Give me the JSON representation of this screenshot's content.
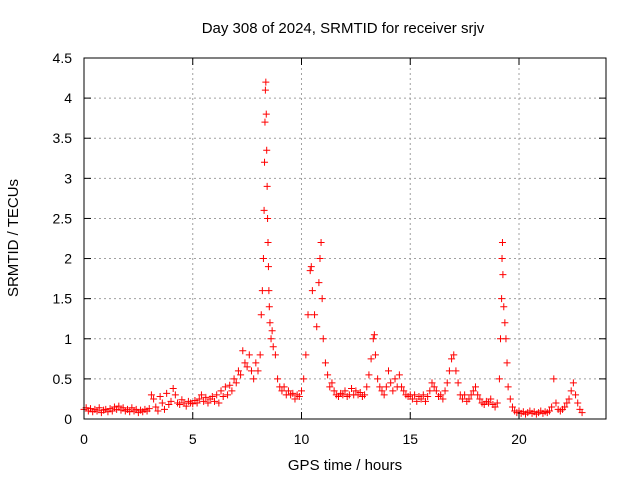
{
  "chart_data": {
    "type": "scatter",
    "title": "Day 308 of 2024, SRMTID for receiver srjv",
    "xlabel": "GPS time / hours",
    "ylabel": "SRMTID / TECUs",
    "xlim": [
      0,
      24
    ],
    "ylim": [
      0,
      4.5
    ],
    "xticks": [
      0,
      5,
      10,
      15,
      20
    ],
    "yticks": [
      0,
      0.5,
      1,
      1.5,
      2,
      2.5,
      3,
      3.5,
      4,
      4.5
    ],
    "xtick_labels": [
      "0",
      "5",
      "10",
      "15",
      "20"
    ],
    "ytick_labels": [
      "0",
      "0.5",
      "1",
      "1.5",
      "2",
      "2.5",
      "3",
      "3.5",
      "4",
      "4.5"
    ],
    "grid": true,
    "marker": "+",
    "color": "#ff0000",
    "series": [
      {
        "name": "srjv",
        "points": [
          [
            0.0,
            0.12
          ],
          [
            0.1,
            0.14
          ],
          [
            0.2,
            0.1
          ],
          [
            0.3,
            0.13
          ],
          [
            0.4,
            0.09
          ],
          [
            0.5,
            0.12
          ],
          [
            0.6,
            0.1
          ],
          [
            0.7,
            0.14
          ],
          [
            0.8,
            0.08
          ],
          [
            0.9,
            0.11
          ],
          [
            1.0,
            0.12
          ],
          [
            1.1,
            0.09
          ],
          [
            1.2,
            0.13
          ],
          [
            1.3,
            0.1
          ],
          [
            1.4,
            0.15
          ],
          [
            1.5,
            0.12
          ],
          [
            1.6,
            0.16
          ],
          [
            1.7,
            0.11
          ],
          [
            1.8,
            0.14
          ],
          [
            1.9,
            0.1
          ],
          [
            2.0,
            0.12
          ],
          [
            2.1,
            0.09
          ],
          [
            2.2,
            0.14
          ],
          [
            2.3,
            0.1
          ],
          [
            2.4,
            0.12
          ],
          [
            2.5,
            0.08
          ],
          [
            2.6,
            0.11
          ],
          [
            2.7,
            0.09
          ],
          [
            2.8,
            0.12
          ],
          [
            2.9,
            0.1
          ],
          [
            3.0,
            0.13
          ],
          [
            3.1,
            0.3
          ],
          [
            3.2,
            0.25
          ],
          [
            3.3,
            0.15
          ],
          [
            3.4,
            0.1
          ],
          [
            3.5,
            0.28
          ],
          [
            3.6,
            0.2
          ],
          [
            3.7,
            0.12
          ],
          [
            3.8,
            0.32
          ],
          [
            3.9,
            0.18
          ],
          [
            4.0,
            0.22
          ],
          [
            4.1,
            0.38
          ],
          [
            4.2,
            0.3
          ],
          [
            4.3,
            0.2
          ],
          [
            4.4,
            0.18
          ],
          [
            4.5,
            0.24
          ],
          [
            4.6,
            0.2
          ],
          [
            4.7,
            0.16
          ],
          [
            4.8,
            0.22
          ],
          [
            4.9,
            0.2
          ],
          [
            5.0,
            0.19
          ],
          [
            5.1,
            0.23
          ],
          [
            5.2,
            0.2
          ],
          [
            5.3,
            0.25
          ],
          [
            5.4,
            0.3
          ],
          [
            5.5,
            0.22
          ],
          [
            5.6,
            0.27
          ],
          [
            5.7,
            0.2
          ],
          [
            5.8,
            0.25
          ],
          [
            5.9,
            0.28
          ],
          [
            6.0,
            0.22
          ],
          [
            6.1,
            0.3
          ],
          [
            6.2,
            0.2
          ],
          [
            6.3,
            0.35
          ],
          [
            6.4,
            0.28
          ],
          [
            6.5,
            0.4
          ],
          [
            6.6,
            0.3
          ],
          [
            6.7,
            0.42
          ],
          [
            6.8,
            0.35
          ],
          [
            6.9,
            0.5
          ],
          [
            7.0,
            0.45
          ],
          [
            7.1,
            0.6
          ],
          [
            7.2,
            0.55
          ],
          [
            7.3,
            0.85
          ],
          [
            7.4,
            0.7
          ],
          [
            7.5,
            0.65
          ],
          [
            7.6,
            0.8
          ],
          [
            7.7,
            0.6
          ],
          [
            7.8,
            0.5
          ],
          [
            7.9,
            0.7
          ],
          [
            8.0,
            0.6
          ],
          [
            8.1,
            0.8
          ],
          [
            8.15,
            1.3
          ],
          [
            8.2,
            1.6
          ],
          [
            8.25,
            2.0
          ],
          [
            8.28,
            2.6
          ],
          [
            8.3,
            3.2
          ],
          [
            8.32,
            3.7
          ],
          [
            8.34,
            4.1
          ],
          [
            8.36,
            4.2
          ],
          [
            8.38,
            3.8
          ],
          [
            8.4,
            3.35
          ],
          [
            8.42,
            2.9
          ],
          [
            8.44,
            2.5
          ],
          [
            8.46,
            2.2
          ],
          [
            8.48,
            1.9
          ],
          [
            8.5,
            1.6
          ],
          [
            8.52,
            1.4
          ],
          [
            8.55,
            1.2
          ],
          [
            8.6,
            1.0
          ],
          [
            8.65,
            1.1
          ],
          [
            8.7,
            0.9
          ],
          [
            8.8,
            0.8
          ],
          [
            8.9,
            0.5
          ],
          [
            9.0,
            0.4
          ],
          [
            9.1,
            0.35
          ],
          [
            9.2,
            0.4
          ],
          [
            9.3,
            0.3
          ],
          [
            9.4,
            0.35
          ],
          [
            9.5,
            0.3
          ],
          [
            9.6,
            0.32
          ],
          [
            9.7,
            0.25
          ],
          [
            9.8,
            0.3
          ],
          [
            9.9,
            0.28
          ],
          [
            10.0,
            0.35
          ],
          [
            10.1,
            0.5
          ],
          [
            10.2,
            0.8
          ],
          [
            10.3,
            1.3
          ],
          [
            10.4,
            1.85
          ],
          [
            10.45,
            1.9
          ],
          [
            10.5,
            1.6
          ],
          [
            10.6,
            1.3
          ],
          [
            10.7,
            1.15
          ],
          [
            10.8,
            1.7
          ],
          [
            10.85,
            2.0
          ],
          [
            10.9,
            2.2
          ],
          [
            10.95,
            1.5
          ],
          [
            11.0,
            1.0
          ],
          [
            11.1,
            0.7
          ],
          [
            11.2,
            0.55
          ],
          [
            11.3,
            0.4
          ],
          [
            11.4,
            0.45
          ],
          [
            11.5,
            0.35
          ],
          [
            11.6,
            0.3
          ],
          [
            11.7,
            0.28
          ],
          [
            11.8,
            0.32
          ],
          [
            11.9,
            0.3
          ],
          [
            12.0,
            0.35
          ],
          [
            12.1,
            0.28
          ],
          [
            12.2,
            0.3
          ],
          [
            12.3,
            0.38
          ],
          [
            12.4,
            0.3
          ],
          [
            12.5,
            0.35
          ],
          [
            12.6,
            0.3
          ],
          [
            12.7,
            0.33
          ],
          [
            12.8,
            0.28
          ],
          [
            12.9,
            0.3
          ],
          [
            13.0,
            0.4
          ],
          [
            13.1,
            0.55
          ],
          [
            13.2,
            0.75
          ],
          [
            13.3,
            1.0
          ],
          [
            13.35,
            1.05
          ],
          [
            13.4,
            0.8
          ],
          [
            13.5,
            0.5
          ],
          [
            13.6,
            0.4
          ],
          [
            13.7,
            0.35
          ],
          [
            13.8,
            0.3
          ],
          [
            13.9,
            0.4
          ],
          [
            14.0,
            0.6
          ],
          [
            14.1,
            0.45
          ],
          [
            14.2,
            0.35
          ],
          [
            14.3,
            0.5
          ],
          [
            14.4,
            0.4
          ],
          [
            14.5,
            0.55
          ],
          [
            14.6,
            0.4
          ],
          [
            14.7,
            0.35
          ],
          [
            14.8,
            0.3
          ],
          [
            14.9,
            0.28
          ],
          [
            15.0,
            0.3
          ],
          [
            15.1,
            0.25
          ],
          [
            15.2,
            0.3
          ],
          [
            15.3,
            0.22
          ],
          [
            15.4,
            0.28
          ],
          [
            15.5,
            0.25
          ],
          [
            15.6,
            0.3
          ],
          [
            15.7,
            0.22
          ],
          [
            15.8,
            0.28
          ],
          [
            15.9,
            0.35
          ],
          [
            16.0,
            0.45
          ],
          [
            16.1,
            0.4
          ],
          [
            16.2,
            0.35
          ],
          [
            16.3,
            0.28
          ],
          [
            16.4,
            0.3
          ],
          [
            16.5,
            0.25
          ],
          [
            16.6,
            0.35
          ],
          [
            16.7,
            0.45
          ],
          [
            16.8,
            0.6
          ],
          [
            16.9,
            0.75
          ],
          [
            17.0,
            0.8
          ],
          [
            17.1,
            0.6
          ],
          [
            17.2,
            0.45
          ],
          [
            17.3,
            0.3
          ],
          [
            17.4,
            0.25
          ],
          [
            17.5,
            0.3
          ],
          [
            17.6,
            0.22
          ],
          [
            17.7,
            0.25
          ],
          [
            17.8,
            0.3
          ],
          [
            17.9,
            0.35
          ],
          [
            18.0,
            0.4
          ],
          [
            18.1,
            0.3
          ],
          [
            18.2,
            0.25
          ],
          [
            18.3,
            0.2
          ],
          [
            18.4,
            0.18
          ],
          [
            18.5,
            0.22
          ],
          [
            18.6,
            0.2
          ],
          [
            18.7,
            0.25
          ],
          [
            18.8,
            0.18
          ],
          [
            18.9,
            0.15
          ],
          [
            19.0,
            0.2
          ],
          [
            19.1,
            0.5
          ],
          [
            19.15,
            1.0
          ],
          [
            19.2,
            1.5
          ],
          [
            19.22,
            2.0
          ],
          [
            19.24,
            2.2
          ],
          [
            19.26,
            1.8
          ],
          [
            19.3,
            1.4
          ],
          [
            19.35,
            1.2
          ],
          [
            19.4,
            1.0
          ],
          [
            19.45,
            0.7
          ],
          [
            19.5,
            0.4
          ],
          [
            19.6,
            0.25
          ],
          [
            19.7,
            0.15
          ],
          [
            19.8,
            0.1
          ],
          [
            19.9,
            0.08
          ],
          [
            20.0,
            0.1
          ],
          [
            20.1,
            0.07
          ],
          [
            20.2,
            0.09
          ],
          [
            20.3,
            0.06
          ],
          [
            20.4,
            0.08
          ],
          [
            20.5,
            0.1
          ],
          [
            20.6,
            0.07
          ],
          [
            20.7,
            0.09
          ],
          [
            20.8,
            0.06
          ],
          [
            20.9,
            0.08
          ],
          [
            21.0,
            0.1
          ],
          [
            21.1,
            0.07
          ],
          [
            21.2,
            0.09
          ],
          [
            21.3,
            0.08
          ],
          [
            21.4,
            0.1
          ],
          [
            21.5,
            0.15
          ],
          [
            21.6,
            0.5
          ],
          [
            21.7,
            0.2
          ],
          [
            21.8,
            0.12
          ],
          [
            21.9,
            0.1
          ],
          [
            22.0,
            0.12
          ],
          [
            22.1,
            0.15
          ],
          [
            22.2,
            0.2
          ],
          [
            22.3,
            0.25
          ],
          [
            22.4,
            0.35
          ],
          [
            22.5,
            0.45
          ],
          [
            22.6,
            0.3
          ],
          [
            22.7,
            0.2
          ],
          [
            22.8,
            0.12
          ],
          [
            22.9,
            0.08
          ]
        ]
      }
    ]
  }
}
